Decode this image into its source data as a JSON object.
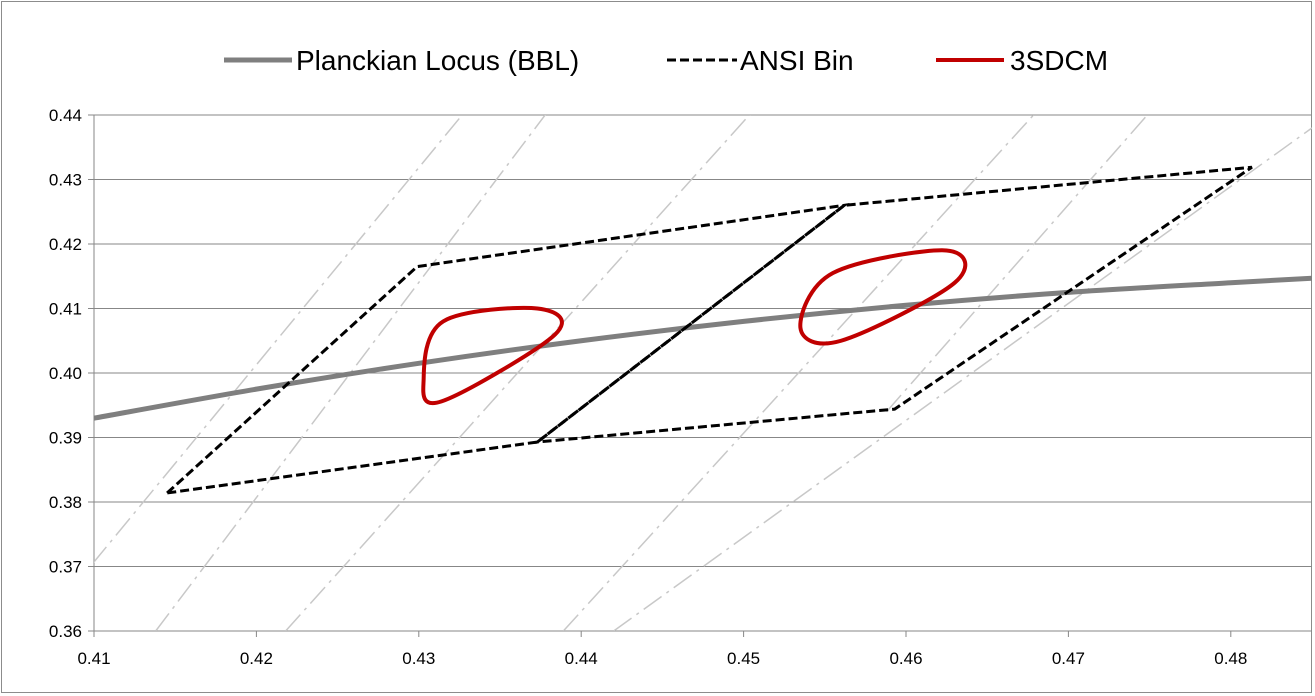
{
  "chart_data": {
    "type": "line",
    "title": "",
    "xlabel": "",
    "ylabel": "",
    "xlim": [
      0.41,
      0.485
    ],
    "ylim": [
      0.36,
      0.44
    ],
    "x_ticks": [
      0.41,
      0.42,
      0.43,
      0.44,
      0.45,
      0.46,
      0.47,
      0.48
    ],
    "x_tick_labels": [
      "0.41",
      "0.42",
      "0.43",
      "0.44",
      "0.45",
      "0.46",
      "0.47",
      "0.48"
    ],
    "y_ticks": [
      0.36,
      0.37,
      0.38,
      0.39,
      0.4,
      0.41,
      0.42,
      0.43,
      0.44
    ],
    "y_tick_labels": [
      "0.36",
      "0.37",
      "0.38",
      "0.39",
      "0.40",
      "0.41",
      "0.42",
      "0.43",
      "0.44"
    ],
    "grid": "horizontal",
    "legend": {
      "placement": "top",
      "entries": [
        {
          "label": "Planckian Locus (BBL)",
          "color": "#7f7f7f",
          "style": "solid"
        },
        {
          "label": "ANSI Bin",
          "color": "#000000",
          "style": "dashed"
        },
        {
          "label": "3SDCM",
          "color": "#c00000",
          "style": "solid"
        }
      ]
    },
    "series": [
      {
        "name": "Planckian Locus (BBL)",
        "color": "#7f7f7f",
        "style": "solid",
        "points": [
          [
            0.41,
            0.393
          ],
          [
            0.42,
            0.3975
          ],
          [
            0.43,
            0.4015
          ],
          [
            0.44,
            0.405
          ],
          [
            0.45,
            0.408
          ],
          [
            0.46,
            0.4105
          ],
          [
            0.47,
            0.4125
          ],
          [
            0.48,
            0.414
          ],
          [
            0.485,
            0.4147
          ]
        ]
      },
      {
        "name": "ANSI Bin",
        "color": "#000000",
        "style": "dashed",
        "polygons": [
          [
            [
              0.4145,
              0.3814
            ],
            [
              0.4299,
              0.4165
            ],
            [
              0.4562,
              0.426
            ],
            [
              0.4373,
              0.3893
            ]
          ],
          [
            [
              0.4373,
              0.3893
            ],
            [
              0.4562,
              0.426
            ],
            [
              0.4813,
              0.4319
            ],
            [
              0.4593,
              0.3944
            ]
          ]
        ]
      },
      {
        "name": "3SDCM",
        "color": "#c00000",
        "style": "solid",
        "ellipses": [
          {
            "cx": 0.4344,
            "cy": 0.4026,
            "points": [
              [
                0.4315,
                0.408
              ],
              [
                0.4373,
                0.41
              ],
              [
                0.4384,
                0.406
              ],
              [
                0.4314,
                0.3956
              ],
              [
                0.4303,
                0.3992
              ]
            ]
          },
          {
            "cx": 0.4578,
            "cy": 0.4101,
            "points": [
              [
                0.4555,
                0.4155
              ],
              [
                0.4625,
                0.419
              ],
              [
                0.463,
                0.414
              ],
              [
                0.456,
                0.405
              ],
              [
                0.4535,
                0.407
              ]
            ]
          }
        ]
      },
      {
        "name": "",
        "color": "#c8c8c8",
        "style": "dash-dot",
        "lines": [
          [
            [
              0.4099,
              0.3704
            ],
            [
              0.4328,
              0.4404
            ]
          ],
          [
            [
              0.4138,
              0.36
            ],
            [
              0.4379,
              0.4404
            ]
          ],
          [
            [
              0.4218,
              0.36
            ],
            [
              0.4505,
              0.4404
            ]
          ],
          [
            [
              0.4389,
              0.36
            ],
            [
              0.468,
              0.4404
            ]
          ],
          [
            [
              0.4588,
              0.394
            ],
            [
              0.475,
              0.4404
            ]
          ],
          [
            [
              0.442,
              0.36
            ],
            [
              0.485,
              0.438
            ]
          ]
        ]
      }
    ]
  }
}
